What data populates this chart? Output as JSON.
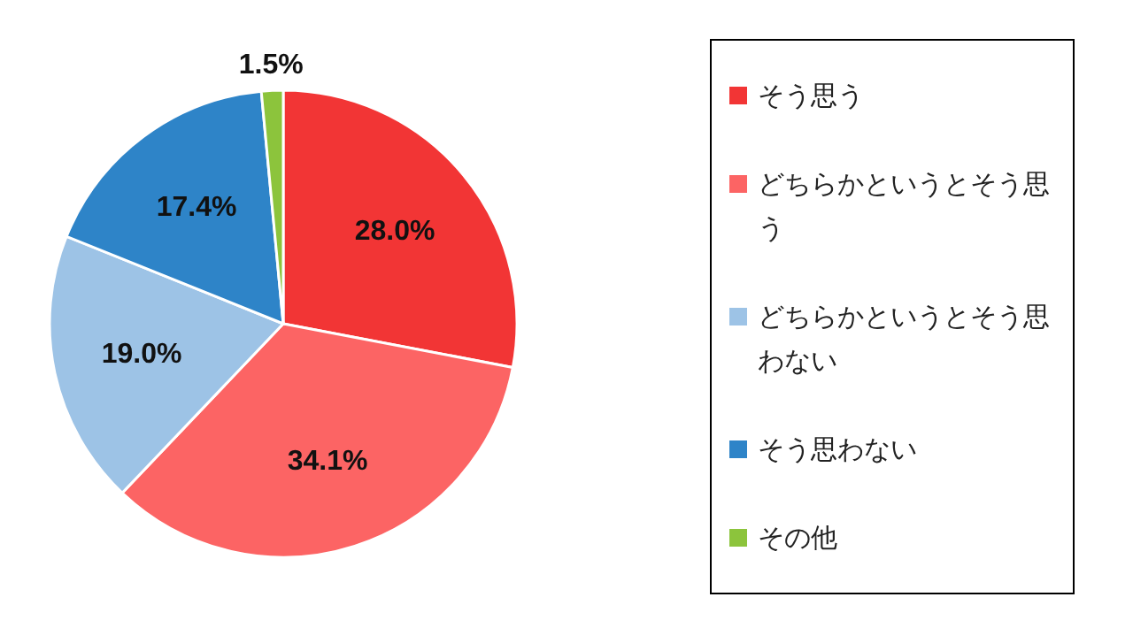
{
  "chart_data": {
    "type": "pie",
    "categories": [
      "そう思う",
      "どちらかというとそう思う",
      "どちらかというとそう思わない",
      "そう思わない",
      "その他"
    ],
    "values": [
      28.0,
      34.1,
      19.0,
      17.4,
      1.5
    ],
    "colors": [
      "#f23535",
      "#fc6464",
      "#9dc3e6",
      "#2e84c8",
      "#8cc43c"
    ],
    "value_labels": [
      "28.0%",
      "34.1%",
      "19.0%",
      "17.4%",
      "1.5%"
    ],
    "legend": "right"
  }
}
